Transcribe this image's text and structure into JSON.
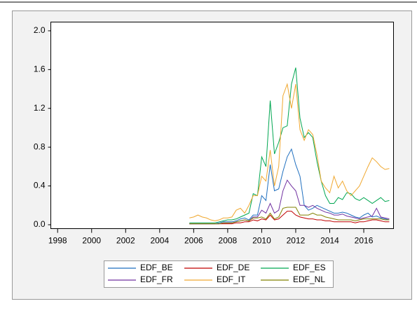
{
  "chart_data": {
    "type": "line",
    "x": [
      2005.75,
      2006,
      2006.25,
      2006.5,
      2006.75,
      2007,
      2007.25,
      2007.5,
      2007.75,
      2008,
      2008.25,
      2008.5,
      2008.75,
      2009,
      2009.25,
      2009.5,
      2009.75,
      2010,
      2010.25,
      2010.5,
      2010.75,
      2011,
      2011.25,
      2011.5,
      2011.75,
      2012,
      2012.25,
      2012.5,
      2012.75,
      2013,
      2013.25,
      2013.5,
      2013.75,
      2014,
      2014.25,
      2014.5,
      2014.75,
      2015,
      2015.25,
      2015.5,
      2015.75,
      2016,
      2016.25,
      2016.5,
      2016.75,
      2017,
      2017.25,
      2017.5
    ],
    "series": [
      {
        "name": "EDF_BE",
        "color": "#1f6fbf",
        "values": [
          0.01,
          0.01,
          0.01,
          0.01,
          0.01,
          0.01,
          0.01,
          0.02,
          0.03,
          0.03,
          0.03,
          0.04,
          0.06,
          0.07,
          0.05,
          0.1,
          0.1,
          0.3,
          0.25,
          0.62,
          0.35,
          0.37,
          0.55,
          0.7,
          0.78,
          0.62,
          0.5,
          0.2,
          0.15,
          0.17,
          0.2,
          0.18,
          0.16,
          0.14,
          0.12,
          0.12,
          0.13,
          0.12,
          0.1,
          0.08,
          0.07,
          0.1,
          0.12,
          0.08,
          0.09,
          0.07,
          0.06,
          0.05
        ]
      },
      {
        "name": "EDF_DE",
        "color": "#c00000",
        "values": [
          0.01,
          0.01,
          0.01,
          0.01,
          0.01,
          0.01,
          0.01,
          0.01,
          0.01,
          0.01,
          0.01,
          0.02,
          0.02,
          0.03,
          0.03,
          0.05,
          0.04,
          0.06,
          0.05,
          0.1,
          0.05,
          0.06,
          0.1,
          0.14,
          0.14,
          0.1,
          0.08,
          0.07,
          0.06,
          0.06,
          0.05,
          0.05,
          0.04,
          0.04,
          0.03,
          0.03,
          0.03,
          0.03,
          0.03,
          0.02,
          0.03,
          0.03,
          0.04,
          0.05,
          0.05,
          0.04,
          0.03,
          0.03
        ]
      },
      {
        "name": "EDF_ES",
        "color": "#00a651",
        "values": [
          0.02,
          0.02,
          0.02,
          0.02,
          0.02,
          0.02,
          0.02,
          0.03,
          0.04,
          0.05,
          0.05,
          0.06,
          0.08,
          0.1,
          0.12,
          0.32,
          0.3,
          0.7,
          0.6,
          1.28,
          0.73,
          0.85,
          1.0,
          1.02,
          1.45,
          1.62,
          1.1,
          0.9,
          0.95,
          0.9,
          0.65,
          0.45,
          0.3,
          0.22,
          0.22,
          0.28,
          0.26,
          0.33,
          0.32,
          0.27,
          0.25,
          0.28,
          0.25,
          0.22,
          0.25,
          0.28,
          0.24,
          0.25
        ]
      },
      {
        "name": "EDF_FR",
        "color": "#7030a0",
        "values": [
          0.01,
          0.01,
          0.01,
          0.01,
          0.01,
          0.01,
          0.01,
          0.01,
          0.02,
          0.02,
          0.02,
          0.03,
          0.04,
          0.05,
          0.04,
          0.08,
          0.08,
          0.15,
          0.12,
          0.22,
          0.12,
          0.15,
          0.35,
          0.46,
          0.4,
          0.35,
          0.2,
          0.2,
          0.18,
          0.2,
          0.17,
          0.15,
          0.13,
          0.12,
          0.1,
          0.1,
          0.11,
          0.09,
          0.08,
          0.07,
          0.06,
          0.07,
          0.08,
          0.09,
          0.17,
          0.08,
          0.07,
          0.06
        ]
      },
      {
        "name": "EDF_IT",
        "color": "#f0a830",
        "values": [
          0.07,
          0.08,
          0.1,
          0.08,
          0.07,
          0.05,
          0.04,
          0.05,
          0.07,
          0.07,
          0.08,
          0.15,
          0.17,
          0.12,
          0.2,
          0.3,
          0.3,
          0.5,
          0.45,
          0.77,
          0.4,
          0.6,
          1.33,
          1.45,
          1.2,
          1.45,
          0.98,
          0.87,
          0.98,
          0.93,
          0.72,
          0.45,
          0.38,
          0.33,
          0.5,
          0.38,
          0.45,
          0.35,
          0.3,
          0.35,
          0.4,
          0.5,
          0.6,
          0.69,
          0.65,
          0.6,
          0.57,
          0.58
        ]
      },
      {
        "name": "EDF_NL",
        "color": "#808000",
        "values": [
          0.01,
          0.01,
          0.01,
          0.01,
          0.01,
          0.01,
          0.01,
          0.01,
          0.02,
          0.02,
          0.02,
          0.03,
          0.04,
          0.05,
          0.04,
          0.07,
          0.07,
          0.08,
          0.06,
          0.12,
          0.06,
          0.08,
          0.17,
          0.18,
          0.18,
          0.18,
          0.1,
          0.1,
          0.1,
          0.12,
          0.1,
          0.1,
          0.08,
          0.07,
          0.06,
          0.05,
          0.05,
          0.05,
          0.05,
          0.04,
          0.05,
          0.06,
          0.06,
          0.06,
          0.06,
          0.06,
          0.05,
          0.05
        ]
      }
    ],
    "xlim": [
      1997.6,
      2017.75
    ],
    "xticks": [
      1998,
      2000,
      2002,
      2004,
      2006,
      2008,
      2010,
      2012,
      2014,
      2016
    ],
    "ylim": [
      -0.04,
      2.09
    ],
    "yticks": [
      {
        "value": 0,
        "label": "0.0"
      },
      0.4,
      0.8,
      1.2,
      1.6,
      {
        "value": 2,
        "label": "2.0"
      }
    ],
    "grid": false,
    "legend": "bottom"
  }
}
